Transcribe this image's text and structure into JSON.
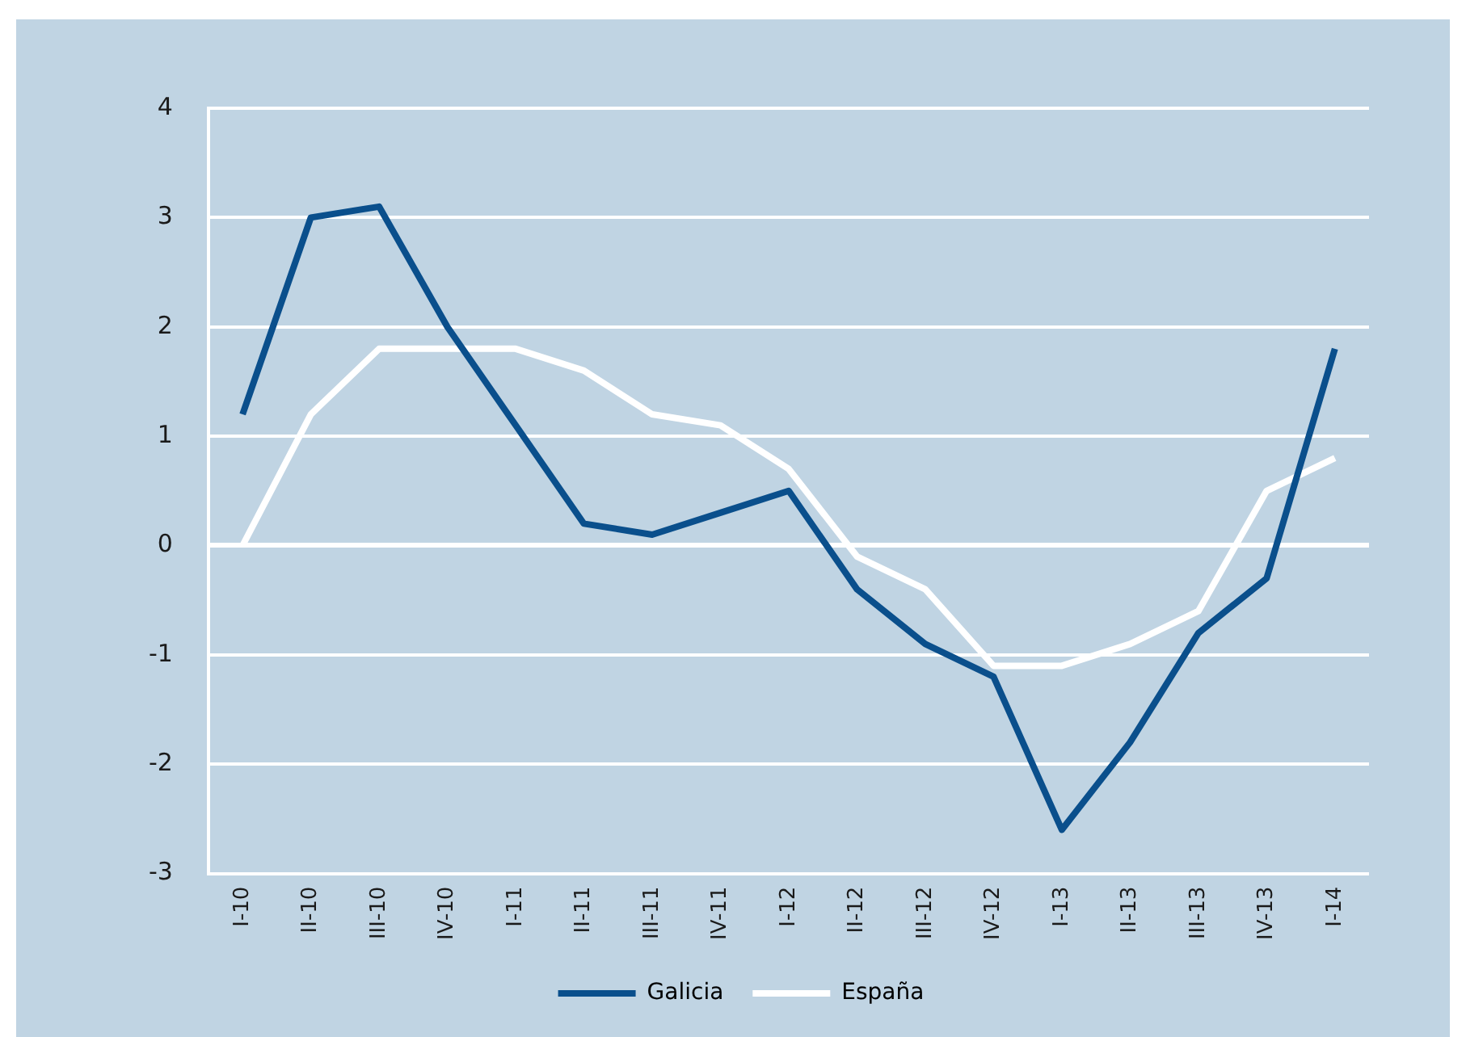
{
  "chart_data": {
    "type": "line",
    "categories": [
      "I-10",
      "II-10",
      "III-10",
      "IV-10",
      "I-11",
      "II-11",
      "III-11",
      "IV-11",
      "I-12",
      "II-12",
      "III-12",
      "IV-12",
      "I-13",
      "II-13",
      "III-13",
      "IV-13",
      "I-14"
    ],
    "series": [
      {
        "name": "Galicia",
        "color": "#0a4f8c",
        "values": [
          1.2,
          3.0,
          3.1,
          2.0,
          1.1,
          0.2,
          0.1,
          0.3,
          0.5,
          -0.4,
          -0.9,
          -1.2,
          -2.6,
          -1.8,
          -0.8,
          -0.3,
          1.8
        ]
      },
      {
        "name": "España",
        "color": "#ffffff",
        "values": [
          0,
          1.2,
          1.8,
          1.8,
          1.8,
          1.6,
          1.2,
          1.1,
          0.7,
          -0.1,
          -0.4,
          -1.1,
          -1.1,
          -0.9,
          -0.6,
          0.5,
          0.8
        ]
      }
    ],
    "ylim": [
      -3,
      4
    ],
    "yticks": [
      -3,
      -2,
      -1,
      0,
      1,
      2,
      3,
      4
    ],
    "grid": "y",
    "legend": "bottom",
    "marker": "none",
    "line_style": "solid"
  }
}
